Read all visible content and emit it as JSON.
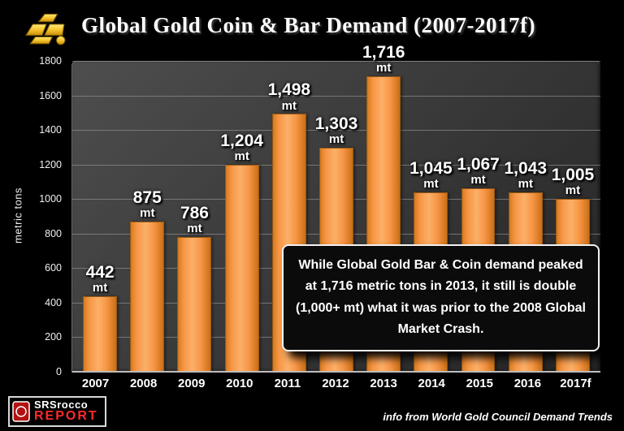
{
  "header": {
    "title": "Global Gold Coin & Bar Demand (2007-2017f)",
    "icon": "gold-bars-icon"
  },
  "chart_data": {
    "type": "bar",
    "title": "Global Gold Coin & Bar Demand (2007-2017f)",
    "categories": [
      "2007",
      "2008",
      "2009",
      "2010",
      "2011",
      "2012",
      "2013",
      "2014",
      "2015",
      "2016",
      "2017f"
    ],
    "values": [
      442,
      875,
      786,
      1204,
      1498,
      1303,
      1716,
      1045,
      1067,
      1043,
      1005
    ],
    "value_labels": [
      "442",
      "875",
      "786",
      "1,204",
      "1,498",
      "1,303",
      "1,716",
      "1,045",
      "1,067",
      "1,043",
      "1,005"
    ],
    "unit_label": "mt",
    "xlabel": "",
    "ylabel": "metric tons",
    "ylim": [
      0,
      1800
    ],
    "ytick_step": 200,
    "yticks": [
      "0",
      "200",
      "400",
      "600",
      "800",
      "1000",
      "1200",
      "1400",
      "1600",
      "1800"
    ],
    "grid": "horizontal",
    "legend": "none",
    "bar_color": "#F79646",
    "bar_border_color": "#9C5A12",
    "plot_bg_color": "#3B3B3B",
    "page_bg_color": "#000000"
  },
  "annotation": {
    "text": "While Global Gold Bar & Coin demand peaked at 1,716 metric tons in 2013, it still is double (1,000+ mt) what it was prior to the 2008 Global Market Crash."
  },
  "footer": {
    "logo_name": "SRSrocco",
    "logo_report": "REPORT",
    "credit": "info from World Gold Council Demand Trends"
  }
}
